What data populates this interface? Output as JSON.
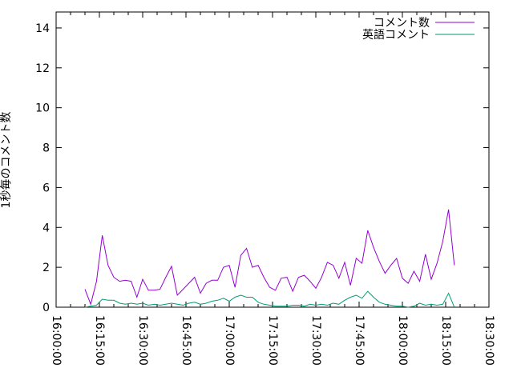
{
  "chart_data": {
    "type": "line",
    "title": "",
    "xlabel": "",
    "ylabel": "1秒毎のコメント数",
    "grid": false,
    "legend_position": "top-right-inside",
    "x_range": [
      "16:00:00",
      "18:30:00"
    ],
    "ylim": [
      0,
      14.8
    ],
    "yticks": [
      0,
      2,
      4,
      6,
      8,
      10,
      12,
      14
    ],
    "xtick_labels": [
      "16:00:00",
      "16:15:00",
      "16:30:00",
      "16:45:00",
      "17:00:00",
      "17:15:00",
      "17:30:00",
      "17:45:00",
      "18:00:00",
      "18:15:00",
      "18:30:00"
    ],
    "x_major_tick_minutes": 15,
    "x_minor_tick_minutes": 5,
    "x": [
      "16:10",
      "16:12",
      "16:14",
      "16:16",
      "16:18",
      "16:20",
      "16:22",
      "16:24",
      "16:26",
      "16:28",
      "16:30",
      "16:32",
      "16:34",
      "16:36",
      "16:38",
      "16:40",
      "16:42",
      "16:44",
      "16:46",
      "16:48",
      "16:50",
      "16:52",
      "16:54",
      "16:56",
      "16:58",
      "17:00",
      "17:02",
      "17:04",
      "17:06",
      "17:08",
      "17:10",
      "17:12",
      "17:14",
      "17:16",
      "17:18",
      "17:20",
      "17:22",
      "17:24",
      "17:26",
      "17:28",
      "17:30",
      "17:32",
      "17:34",
      "17:36",
      "17:38",
      "17:40",
      "17:42",
      "17:44",
      "17:46",
      "17:48",
      "17:50",
      "17:52",
      "17:54",
      "17:56",
      "17:58",
      "18:00",
      "18:02",
      "18:04",
      "18:06",
      "18:08",
      "18:10",
      "18:12",
      "18:14",
      "18:16",
      "18:18"
    ],
    "series": [
      {
        "name": "コメント数",
        "color": "#9400d3",
        "values": [
          0.9,
          0.15,
          1.3,
          3.6,
          2.1,
          1.5,
          1.3,
          1.35,
          1.3,
          0.5,
          1.4,
          0.85,
          0.85,
          0.9,
          1.5,
          2.05,
          0.6,
          0.9,
          1.2,
          1.5,
          0.7,
          1.2,
          1.35,
          1.35,
          2.0,
          2.1,
          1.0,
          2.6,
          2.95,
          2.0,
          2.1,
          1.5,
          1.0,
          0.85,
          1.45,
          1.5,
          0.8,
          1.5,
          1.6,
          1.3,
          0.95,
          1.5,
          2.25,
          2.1,
          1.45,
          2.25,
          1.1,
          2.45,
          2.2,
          3.85,
          3.0,
          2.3,
          1.7,
          2.1,
          2.45,
          1.45,
          1.2,
          1.8,
          1.3,
          2.65,
          1.4,
          2.2,
          3.3,
          4.9,
          2.1
        ]
      },
      {
        "name": "英語コメント",
        "color": "#009e73",
        "values": [
          0,
          0.05,
          0.1,
          0.4,
          0.35,
          0.35,
          0.2,
          0.15,
          0.2,
          0.15,
          0.2,
          0.1,
          0.15,
          0.1,
          0.15,
          0.2,
          0.15,
          0.1,
          0.2,
          0.25,
          0.15,
          0.2,
          0.3,
          0.35,
          0.45,
          0.3,
          0.5,
          0.6,
          0.5,
          0.5,
          0.25,
          0.15,
          0.1,
          0.05,
          0.05,
          0.05,
          0.1,
          0.1,
          0.05,
          0.15,
          0.1,
          0.15,
          0.1,
          0.2,
          0.15,
          0.35,
          0.5,
          0.6,
          0.45,
          0.8,
          0.5,
          0.25,
          0.15,
          0.1,
          0.05,
          0.05,
          0,
          0.05,
          0.2,
          0.1,
          0.15,
          0.1,
          0.15,
          0.7,
          0
        ]
      }
    ],
    "axis_color": "#000000",
    "background_color": "#ffffff"
  }
}
